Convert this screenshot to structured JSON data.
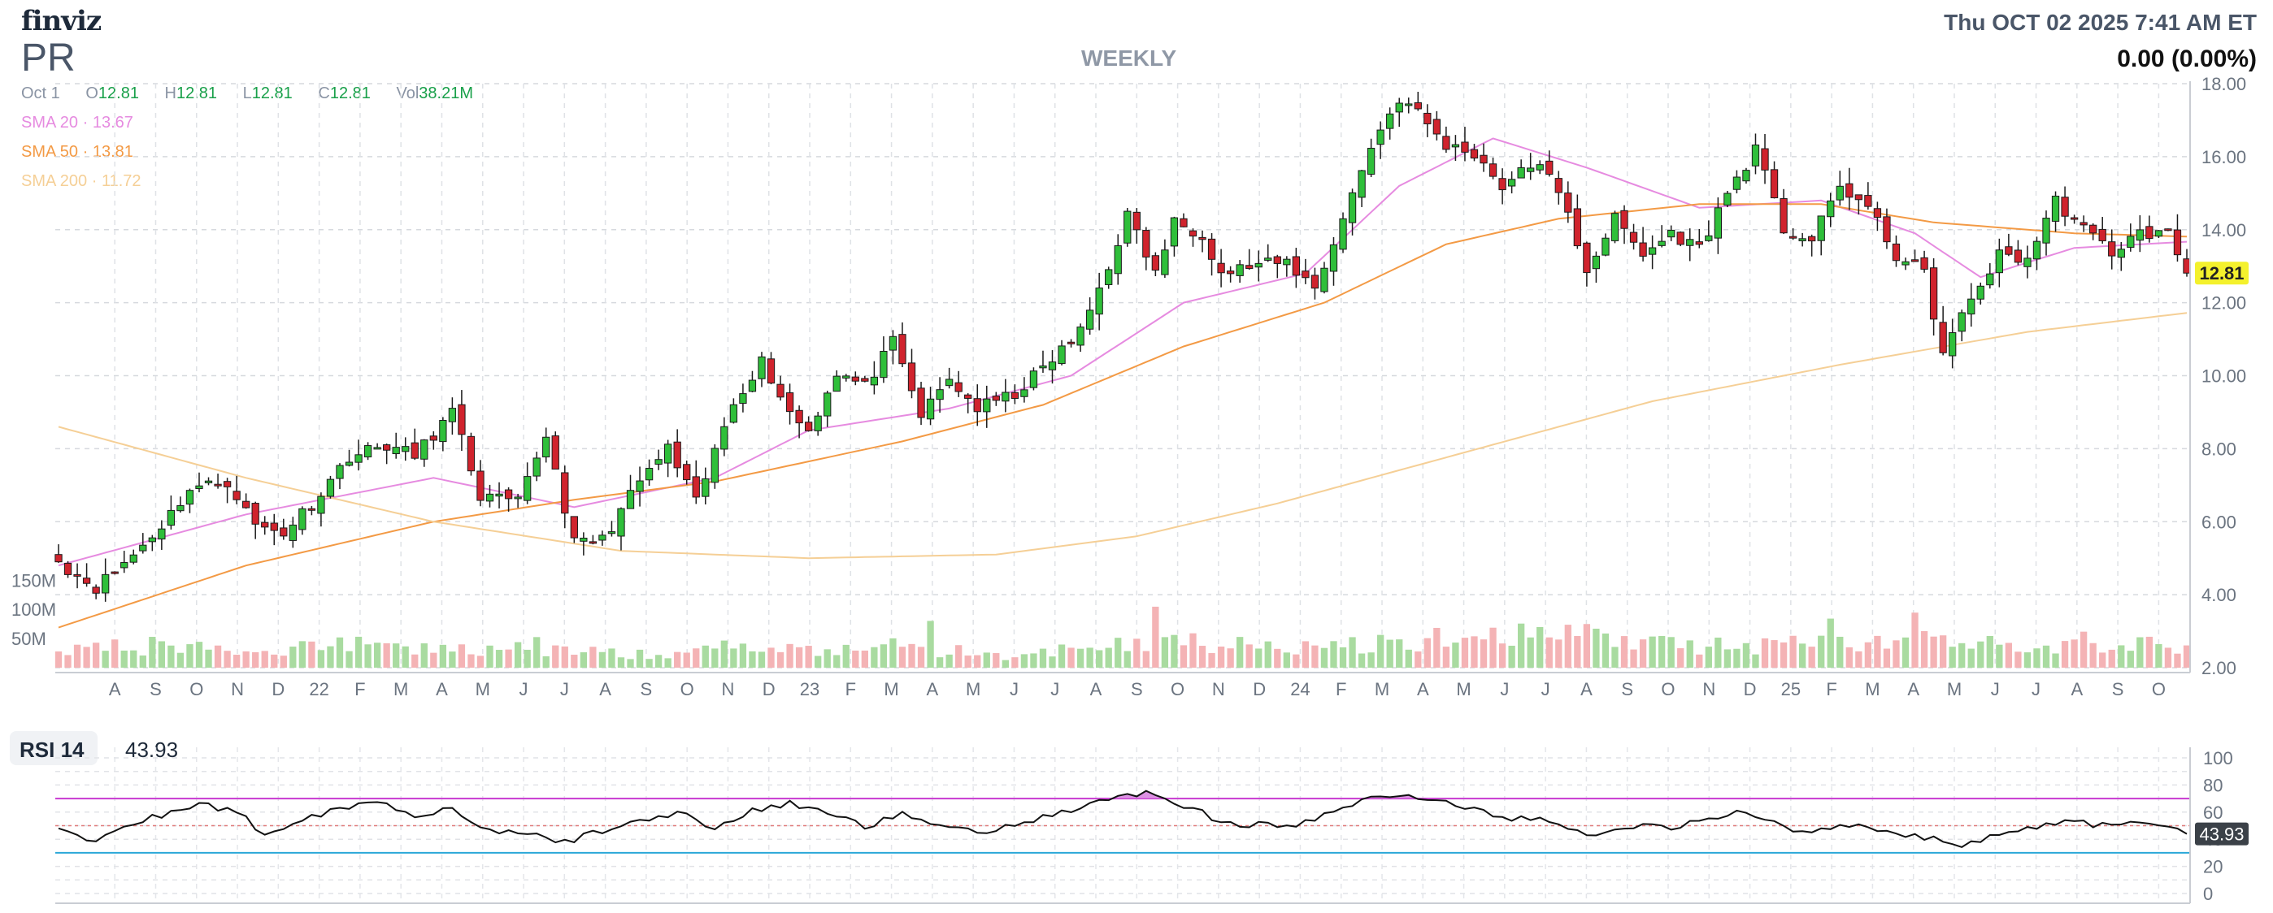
{
  "header": {
    "logo": "finviz",
    "ticker": "PR",
    "timeframe": "WEEKLY",
    "datetime": "Thu OCT 02 2025 7:41 AM ET",
    "change": "0.00 (0.00%)"
  },
  "ohlc": {
    "date": "Oct 1",
    "o_label": "O",
    "o": "12.81",
    "h_label": "H",
    "h": "12.81",
    "l_label": "L",
    "l": "12.81",
    "c_label": "C",
    "c": "12.81",
    "vol_label": "Vol",
    "vol": "38.21M"
  },
  "smas": [
    {
      "label": "SMA 20",
      "value": "13.67",
      "color": "#e68be0"
    },
    {
      "label": "SMA 50",
      "value": "13.81",
      "color": "#f39a45"
    },
    {
      "label": "SMA 200",
      "value": "11.72",
      "color": "#f5cf96"
    }
  ],
  "rsi": {
    "label": "RSI 14",
    "value": "43.93"
  },
  "colors": {
    "up": "#2fbf3a",
    "down": "#d0232d",
    "up_vol": "#a9dba0",
    "down_vol": "#f4b3b5",
    "rsi_upper": "#c83ad1",
    "rsi_lower": "#2aa8d8",
    "price_tag": "#f4f12c"
  },
  "chart_data": [
    {
      "type": "candlestick",
      "ylim": [
        2.0,
        18.0
      ],
      "y_ticks": [
        "18.00",
        "16.00",
        "14.00",
        "12.00",
        "10.00",
        "8.00",
        "6.00",
        "4.00",
        "2.00"
      ],
      "x_ticks": [
        "A",
        "S",
        "O",
        "N",
        "D",
        "22",
        "F",
        "M",
        "A",
        "M",
        "J",
        "J",
        "A",
        "S",
        "O",
        "N",
        "D",
        "23",
        "F",
        "M",
        "A",
        "M",
        "J",
        "J",
        "A",
        "S",
        "O",
        "N",
        "D",
        "24",
        "F",
        "M",
        "A",
        "M",
        "J",
        "J",
        "A",
        "S",
        "O",
        "N",
        "D",
        "25",
        "F",
        "M",
        "A",
        "M",
        "J",
        "J",
        "A",
        "S",
        "O"
      ],
      "last_price_label": "12.81",
      "close_anchors": [
        [
          0,
          4.9
        ],
        [
          4,
          4.2
        ],
        [
          8,
          5.1
        ],
        [
          11,
          5.9
        ],
        [
          14,
          6.9
        ],
        [
          18,
          7.1
        ],
        [
          21,
          5.9
        ],
        [
          24,
          5.7
        ],
        [
          28,
          6.8
        ],
        [
          31,
          7.8
        ],
        [
          35,
          8.1
        ],
        [
          38,
          7.8
        ],
        [
          42,
          9.0
        ],
        [
          45,
          6.7
        ],
        [
          49,
          6.5
        ],
        [
          52,
          8.4
        ],
        [
          55,
          5.4
        ],
        [
          58,
          5.5
        ],
        [
          62,
          7.1
        ],
        [
          65,
          8.0
        ],
        [
          68,
          6.5
        ],
        [
          72,
          9.3
        ],
        [
          75,
          10.4
        ],
        [
          78,
          9.0
        ],
        [
          80,
          8.5
        ],
        [
          83,
          10.1
        ],
        [
          86,
          9.7
        ],
        [
          89,
          10.9
        ],
        [
          92,
          8.9
        ],
        [
          95,
          9.9
        ],
        [
          98,
          9.1
        ],
        [
          102,
          9.5
        ],
        [
          105,
          10.2
        ],
        [
          109,
          11.2
        ],
        [
          112,
          13.0
        ],
        [
          114,
          14.4
        ],
        [
          117,
          12.8
        ],
        [
          119,
          14.2
        ],
        [
          122,
          13.9
        ],
        [
          124,
          12.8
        ],
        [
          127,
          13.0
        ],
        [
          131,
          13.1
        ],
        [
          134,
          12.4
        ],
        [
          137,
          14.3
        ],
        [
          140,
          16.3
        ],
        [
          143,
          17.6
        ],
        [
          145,
          17.2
        ],
        [
          148,
          16.3
        ],
        [
          151,
          16.1
        ],
        [
          154,
          15.2
        ],
        [
          158,
          15.9
        ],
        [
          161,
          14.4
        ],
        [
          163,
          12.9
        ],
        [
          166,
          14.3
        ],
        [
          169,
          13.3
        ],
        [
          172,
          13.9
        ],
        [
          175,
          13.5
        ],
        [
          178,
          15.0
        ],
        [
          181,
          16.2
        ],
        [
          184,
          14.0
        ],
        [
          187,
          13.7
        ],
        [
          190,
          15.2
        ],
        [
          193,
          14.6
        ],
        [
          196,
          13.3
        ],
        [
          199,
          12.8
        ],
        [
          201,
          10.6
        ],
        [
          204,
          12.1
        ],
        [
          207,
          13.3
        ],
        [
          210,
          13.2
        ],
        [
          213,
          14.8
        ],
        [
          216,
          14.0
        ],
        [
          219,
          13.4
        ],
        [
          222,
          13.9
        ],
        [
          225,
          13.9
        ],
        [
          227,
          12.81
        ]
      ],
      "open_anchors": [
        [
          0,
          5.1
        ],
        [
          227,
          13.2
        ]
      ],
      "volume_axis_ticks": [
        "150M",
        "100M",
        "50M"
      ],
      "volume_note": "weekly volume bars, last week 38.21M",
      "volume_anchors": [
        [
          0,
          28
        ],
        [
          10,
          38
        ],
        [
          20,
          28
        ],
        [
          30,
          40
        ],
        [
          40,
          30
        ],
        [
          50,
          38
        ],
        [
          60,
          24
        ],
        [
          70,
          30
        ],
        [
          80,
          28
        ],
        [
          90,
          38
        ],
        [
          100,
          20
        ],
        [
          110,
          36
        ],
        [
          120,
          46
        ],
        [
          130,
          36
        ],
        [
          140,
          42
        ],
        [
          150,
          54
        ],
        [
          160,
          64
        ],
        [
          170,
          40
        ],
        [
          180,
          36
        ],
        [
          190,
          40
        ],
        [
          200,
          44
        ],
        [
          210,
          38
        ],
        [
          220,
          48
        ],
        [
          227,
          25
        ]
      ],
      "series": [
        {
          "name": "SMA 20",
          "anchors": [
            [
              0,
              4.8
            ],
            [
              20,
              6.2
            ],
            [
              40,
              7.2
            ],
            [
              55,
              6.4
            ],
            [
              70,
              7.2
            ],
            [
              80,
              8.5
            ],
            [
              95,
              9.1
            ],
            [
              108,
              10.0
            ],
            [
              120,
              12.0
            ],
            [
              133,
              12.8
            ],
            [
              143,
              15.2
            ],
            [
              153,
              16.5
            ],
            [
              163,
              15.7
            ],
            [
              175,
              14.6
            ],
            [
              188,
              14.8
            ],
            [
              198,
              13.9
            ],
            [
              205,
              12.7
            ],
            [
              215,
              13.5
            ],
            [
              227,
              13.67
            ]
          ]
        },
        {
          "name": "SMA 50",
          "anchors": [
            [
              0,
              3.1
            ],
            [
              20,
              4.8
            ],
            [
              40,
              6.0
            ],
            [
              55,
              6.6
            ],
            [
              70,
              7.1
            ],
            [
              90,
              8.2
            ],
            [
              105,
              9.2
            ],
            [
              120,
              10.8
            ],
            [
              135,
              12.0
            ],
            [
              148,
              13.6
            ],
            [
              160,
              14.3
            ],
            [
              175,
              14.7
            ],
            [
              188,
              14.7
            ],
            [
              200,
              14.2
            ],
            [
              215,
              13.9
            ],
            [
              227,
              13.81
            ]
          ]
        },
        {
          "name": "SMA 200",
          "anchors": [
            [
              0,
              8.6
            ],
            [
              20,
              7.2
            ],
            [
              40,
              6.0
            ],
            [
              60,
              5.2
            ],
            [
              80,
              5.0
            ],
            [
              100,
              5.1
            ],
            [
              115,
              5.6
            ],
            [
              130,
              6.5
            ],
            [
              150,
              7.9
            ],
            [
              170,
              9.3
            ],
            [
              190,
              10.3
            ],
            [
              210,
              11.2
            ],
            [
              227,
              11.72
            ]
          ]
        }
      ]
    },
    {
      "type": "line",
      "name": "RSI 14",
      "ylim": [
        0,
        100
      ],
      "y_ticks": [
        "100",
        "80",
        "60",
        "40",
        "20",
        "0"
      ],
      "overbought": 70,
      "oversold": 30,
      "last_value_label": "43.93",
      "anchors": [
        [
          0,
          48
        ],
        [
          4,
          38
        ],
        [
          8,
          52
        ],
        [
          12,
          60
        ],
        [
          15,
          66
        ],
        [
          19,
          60
        ],
        [
          22,
          44
        ],
        [
          26,
          55
        ],
        [
          30,
          63
        ],
        [
          34,
          68
        ],
        [
          38,
          58
        ],
        [
          42,
          63
        ],
        [
          46,
          45
        ],
        [
          50,
          44
        ],
        [
          54,
          38
        ],
        [
          58,
          46
        ],
        [
          62,
          54
        ],
        [
          66,
          60
        ],
        [
          70,
          48
        ],
        [
          74,
          61
        ],
        [
          78,
          66
        ],
        [
          82,
          60
        ],
        [
          86,
          50
        ],
        [
          90,
          58
        ],
        [
          94,
          52
        ],
        [
          98,
          44
        ],
        [
          102,
          52
        ],
        [
          106,
          58
        ],
        [
          110,
          66
        ],
        [
          114,
          72
        ],
        [
          116,
          76
        ],
        [
          118,
          68
        ],
        [
          121,
          64
        ],
        [
          124,
          52
        ],
        [
          128,
          51
        ],
        [
          132,
          50
        ],
        [
          136,
          60
        ],
        [
          140,
          70
        ],
        [
          143,
          74
        ],
        [
          146,
          68
        ],
        [
          150,
          64
        ],
        [
          154,
          56
        ],
        [
          158,
          56
        ],
        [
          161,
          46
        ],
        [
          164,
          43
        ],
        [
          168,
          50
        ],
        [
          172,
          49
        ],
        [
          176,
          56
        ],
        [
          180,
          60
        ],
        [
          184,
          48
        ],
        [
          188,
          46
        ],
        [
          192,
          53
        ],
        [
          196,
          44
        ],
        [
          200,
          40
        ],
        [
          202,
          34
        ],
        [
          206,
          42
        ],
        [
          210,
          48
        ],
        [
          214,
          54
        ],
        [
          218,
          50
        ],
        [
          222,
          52
        ],
        [
          227,
          43.93
        ]
      ]
    }
  ]
}
